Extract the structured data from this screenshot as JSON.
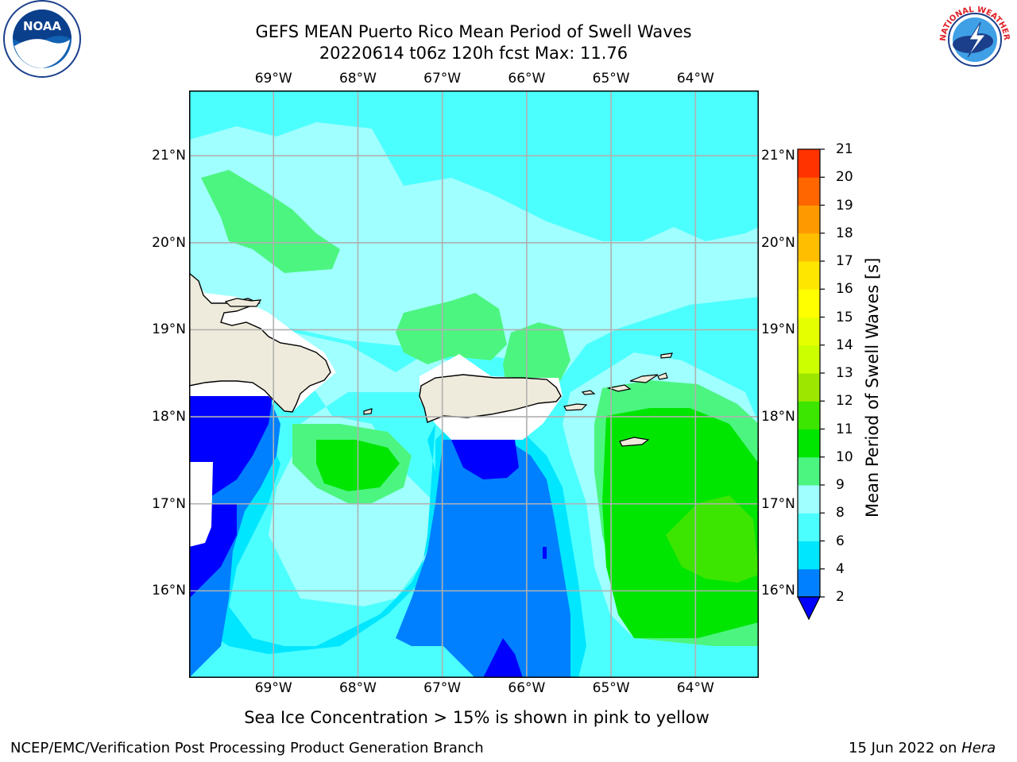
{
  "header": {
    "title_line1": "GEFS MEAN Puerto Rico Mean Period of Swell Waves",
    "title_line2": "20220614 t06z 120h fcst   Max: 11.76"
  },
  "logos": {
    "left": {
      "name": "noaa-logo",
      "text": "NOAA"
    },
    "right": {
      "name": "nws-logo",
      "text": "NATIONAL WEATHER SERVICE"
    }
  },
  "map": {
    "lon_ticks": [
      "69°W",
      "68°W",
      "67°W",
      "66°W",
      "65°W",
      "64°W"
    ],
    "lat_ticks": [
      "21°N",
      "20°N",
      "19°N",
      "18°N",
      "17°N",
      "16°N"
    ],
    "lon_values": [
      -69,
      -68,
      -67,
      -66,
      -65,
      -64
    ],
    "lat_values": [
      21,
      20,
      19,
      18,
      17,
      16
    ],
    "extent": {
      "lon_min": -70.0,
      "lon_max": -63.25,
      "lat_min": 15.0,
      "lat_max": 21.75
    },
    "land_color": "#efebdc",
    "coast_color": "#000000",
    "grid_color": "#b0b0b0"
  },
  "colorbar": {
    "title": "Mean Period of Swell Waves [s]",
    "levels": [
      "2",
      "4",
      "6",
      "8",
      "9",
      "10",
      "11",
      "12",
      "13",
      "14",
      "15",
      "16",
      "17",
      "18",
      "19",
      "20",
      "21"
    ],
    "colors": [
      "#0080ff",
      "#00e6ff",
      "#4cffff",
      "#a0ffff",
      "#4cf580",
      "#00e600",
      "#3ce600",
      "#9ce600",
      "#ccff00",
      "#e6ff00",
      "#ffff00",
      "#ffe600",
      "#ffbf00",
      "#ff9900",
      "#ff6600",
      "#ff3300"
    ],
    "under_color": "#0000ff"
  },
  "note": "Sea Ice Concentration > 15% is shown in pink to yellow",
  "footer": {
    "left": "NCEP/EMC/Verification Post Processing Product Generation Branch",
    "right_date": "15 Jun 2022 on ",
    "right_host": "Hera"
  }
}
